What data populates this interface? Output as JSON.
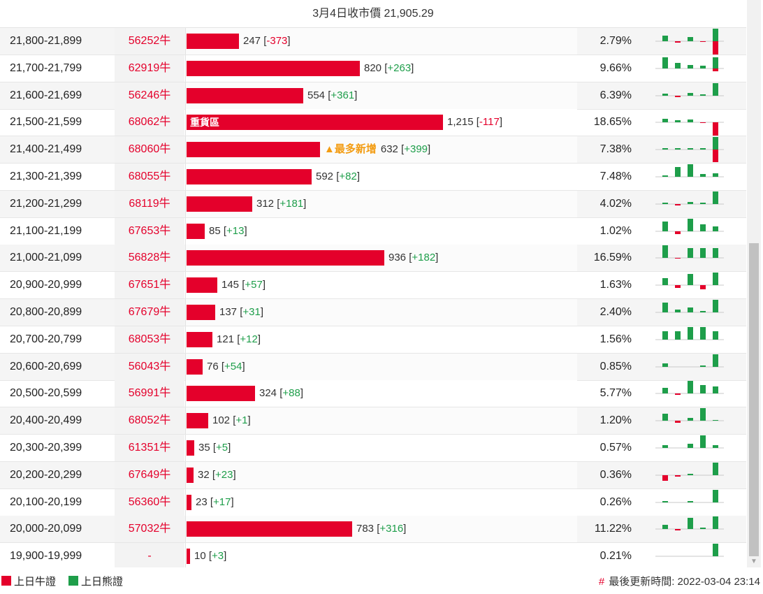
{
  "header": {
    "title": "3月4日收市價 21,905.29"
  },
  "colors": {
    "bull": "#e4002b",
    "bear": "#1e9e4a",
    "highlight": "#f39c12"
  },
  "legend": {
    "bull_label": "上日牛證",
    "bear_label": "上日熊證"
  },
  "footer": {
    "hash": "#",
    "updated": "最後更新時間: 2022-03-04 23:14"
  },
  "scrollbar": {
    "down_arrow_icon": "scroll-down-arrow-icon"
  },
  "rows": [
    {
      "range": "21,800-21,899",
      "code": "56252牛",
      "count": 247,
      "count_text": "247",
      "change": "-373",
      "pct": "2.79%",
      "label": "",
      "spark": [
        {
          "v": 8
        },
        {
          "v": -2
        },
        {
          "v": 6
        },
        {
          "v": -1
        },
        {
          "v": -20,
          "c": "bull"
        },
        {
          "v": 18
        }
      ]
    },
    {
      "range": "21,700-21,799",
      "code": "62919牛",
      "count": 820,
      "count_text": "820",
      "change": "+263",
      "pct": "9.66%",
      "label": "",
      "spark": [
        {
          "v": 16
        },
        {
          "v": 8
        },
        {
          "v": 5
        },
        {
          "v": 4
        },
        {
          "v": -4,
          "c": "bull"
        },
        {
          "v": 16
        }
      ]
    },
    {
      "range": "21,600-21,699",
      "code": "56246牛",
      "count": 554,
      "count_text": "554",
      "change": "+361",
      "pct": "6.39%",
      "label": "",
      "spark": [
        {
          "v": 3
        },
        {
          "v": -2
        },
        {
          "v": 4
        },
        {
          "v": 2
        },
        {
          "v": 18
        }
      ]
    },
    {
      "range": "21,500-21,599",
      "code": "68062牛",
      "count": 1215,
      "count_text": "1,215",
      "change": "-117",
      "pct": "18.65%",
      "label": "重貨區",
      "spark": [
        {
          "v": 5
        },
        {
          "v": 3
        },
        {
          "v": 4
        },
        {
          "v": -1
        },
        {
          "v": -20,
          "c": "bull"
        }
      ]
    },
    {
      "range": "21,400-21,499",
      "code": "68060牛",
      "count": 632,
      "count_text": "632",
      "change": "+399",
      "pct": "7.38%",
      "label": "",
      "tag": "▲最多新增",
      "spark": [
        {
          "v": 2
        },
        {
          "v": 2
        },
        {
          "v": 2
        },
        {
          "v": 2
        },
        {
          "v": -18,
          "c": "bull"
        },
        {
          "v": 18
        }
      ]
    },
    {
      "range": "21,300-21,399",
      "code": "68055牛",
      "count": 592,
      "count_text": "592",
      "change": "+82",
      "pct": "7.48%",
      "label": "",
      "spark": [
        {
          "v": 2
        },
        {
          "v": 14
        },
        {
          "v": 18
        },
        {
          "v": 4
        },
        {
          "v": 5
        }
      ]
    },
    {
      "range": "21,200-21,299",
      "code": "68119牛",
      "count": 312,
      "count_text": "312",
      "change": "+181",
      "pct": "4.02%",
      "label": "",
      "spark": [
        {
          "v": 2
        },
        {
          "v": -2
        },
        {
          "v": 3
        },
        {
          "v": 2
        },
        {
          "v": 18
        }
      ]
    },
    {
      "range": "21,100-21,199",
      "code": "67653牛",
      "count": 85,
      "count_text": "85",
      "change": "+13",
      "pct": "1.02%",
      "label": "",
      "spark": [
        {
          "v": 14
        },
        {
          "v": -4
        },
        {
          "v": 18
        },
        {
          "v": 10
        },
        {
          "v": 7
        }
      ]
    },
    {
      "range": "21,000-21,099",
      "code": "56828牛",
      "count": 936,
      "count_text": "936",
      "change": "+182",
      "pct": "16.59%",
      "label": "",
      "spark": [
        {
          "v": 18
        },
        {
          "v": -1
        },
        {
          "v": 14
        },
        {
          "v": 14
        },
        {
          "v": 14
        }
      ]
    },
    {
      "range": "20,900-20,999",
      "code": "67651牛",
      "count": 145,
      "count_text": "145",
      "change": "+57",
      "pct": "1.63%",
      "label": "",
      "spark": [
        {
          "v": 10
        },
        {
          "v": -4
        },
        {
          "v": 16
        },
        {
          "v": -6
        },
        {
          "v": 18
        }
      ]
    },
    {
      "range": "20,800-20,899",
      "code": "67679牛",
      "count": 137,
      "count_text": "137",
      "change": "+31",
      "pct": "2.40%",
      "label": "",
      "spark": [
        {
          "v": 14
        },
        {
          "v": 4
        },
        {
          "v": 7
        },
        {
          "v": 2
        },
        {
          "v": 18
        }
      ]
    },
    {
      "range": "20,700-20,799",
      "code": "68053牛",
      "count": 121,
      "count_text": "121",
      "change": "+12",
      "pct": "1.56%",
      "label": "",
      "spark": [
        {
          "v": 12
        },
        {
          "v": 12
        },
        {
          "v": 18
        },
        {
          "v": 18
        },
        {
          "v": 12
        }
      ]
    },
    {
      "range": "20,600-20,699",
      "code": "56043牛",
      "count": 76,
      "count_text": "76",
      "change": "+54",
      "pct": "0.85%",
      "label": "",
      "spark": [
        {
          "v": 5
        },
        {
          "v": 0
        },
        {
          "v": 0
        },
        {
          "v": 2
        },
        {
          "v": 18
        }
      ]
    },
    {
      "range": "20,500-20,599",
      "code": "56991牛",
      "count": 324,
      "count_text": "324",
      "change": "+88",
      "pct": "5.77%",
      "label": "",
      "spark": [
        {
          "v": 8
        },
        {
          "v": -2
        },
        {
          "v": 18
        },
        {
          "v": 12
        },
        {
          "v": 10
        }
      ]
    },
    {
      "range": "20,400-20,499",
      "code": "68052牛",
      "count": 102,
      "count_text": "102",
      "change": "+1",
      "pct": "1.20%",
      "label": "",
      "spark": [
        {
          "v": 10
        },
        {
          "v": -3
        },
        {
          "v": 4
        },
        {
          "v": 18
        },
        {
          "v": 1
        }
      ]
    },
    {
      "range": "20,300-20,399",
      "code": "61351牛",
      "count": 35,
      "count_text": "35",
      "change": "+5",
      "pct": "0.57%",
      "label": "",
      "spark": [
        {
          "v": 4
        },
        {
          "v": 0
        },
        {
          "v": 6
        },
        {
          "v": 18
        },
        {
          "v": 4
        }
      ]
    },
    {
      "range": "20,200-20,299",
      "code": "67649牛",
      "count": 32,
      "count_text": "32",
      "change": "+23",
      "pct": "0.36%",
      "label": "",
      "spark": [
        {
          "v": -8,
          "c": "bull"
        },
        {
          "v": -2
        },
        {
          "v": 2
        },
        {
          "v": 0
        },
        {
          "v": 18
        }
      ]
    },
    {
      "range": "20,100-20,199",
      "code": "56360牛",
      "count": 23,
      "count_text": "23",
      "change": "+17",
      "pct": "0.26%",
      "label": "",
      "spark": [
        {
          "v": 2
        },
        {
          "v": 0
        },
        {
          "v": 2
        },
        {
          "v": 0
        },
        {
          "v": 18
        }
      ]
    },
    {
      "range": "20,000-20,099",
      "code": "57032牛",
      "count": 783,
      "count_text": "783",
      "change": "+316",
      "pct": "11.22%",
      "label": "",
      "spark": [
        {
          "v": 6
        },
        {
          "v": -2
        },
        {
          "v": 16
        },
        {
          "v": 2
        },
        {
          "v": 18
        }
      ]
    },
    {
      "range": "19,900-19,999",
      "code": "-",
      "count": 10,
      "count_text": "10",
      "change": "+3",
      "pct": "0.21%",
      "label": "",
      "spark": [
        {
          "v": 0
        },
        {
          "v": 0
        },
        {
          "v": 0
        },
        {
          "v": 0
        },
        {
          "v": 18
        }
      ]
    }
  ]
}
